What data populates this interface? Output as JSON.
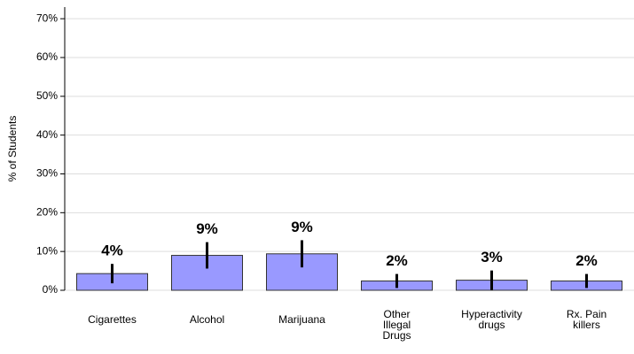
{
  "chart_data": {
    "type": "bar",
    "y_label": "% of Students",
    "categories": [
      "Cigarettes",
      "Alcohol",
      "Marijuana",
      "Other\nIllegal\nDrugs",
      "Hyperactivity\ndrugs",
      "Rx. Pain\nkillers"
    ],
    "values": [
      4.3,
      9.0,
      9.4,
      2.4,
      2.6,
      2.4
    ],
    "value_labels": [
      "4%",
      "9%",
      "9%",
      "2%",
      "3%",
      "2%"
    ],
    "errors": [
      2.5,
      3.4,
      3.5,
      1.8,
      2.5,
      1.8
    ],
    "color": "#9999ff",
    "ylim": [
      0,
      73
    ],
    "yticks": [
      {
        "value": 0,
        "label": "0%"
      },
      {
        "value": 10,
        "label": "10%"
      },
      {
        "value": 20,
        "label": "20%"
      },
      {
        "value": 30,
        "label": "30%"
      },
      {
        "value": 40,
        "label": "40%"
      },
      {
        "value": 50,
        "label": "50%"
      },
      {
        "value": 60,
        "label": "60%"
      },
      {
        "value": 70,
        "label": "70%"
      }
    ],
    "grid": true
  }
}
